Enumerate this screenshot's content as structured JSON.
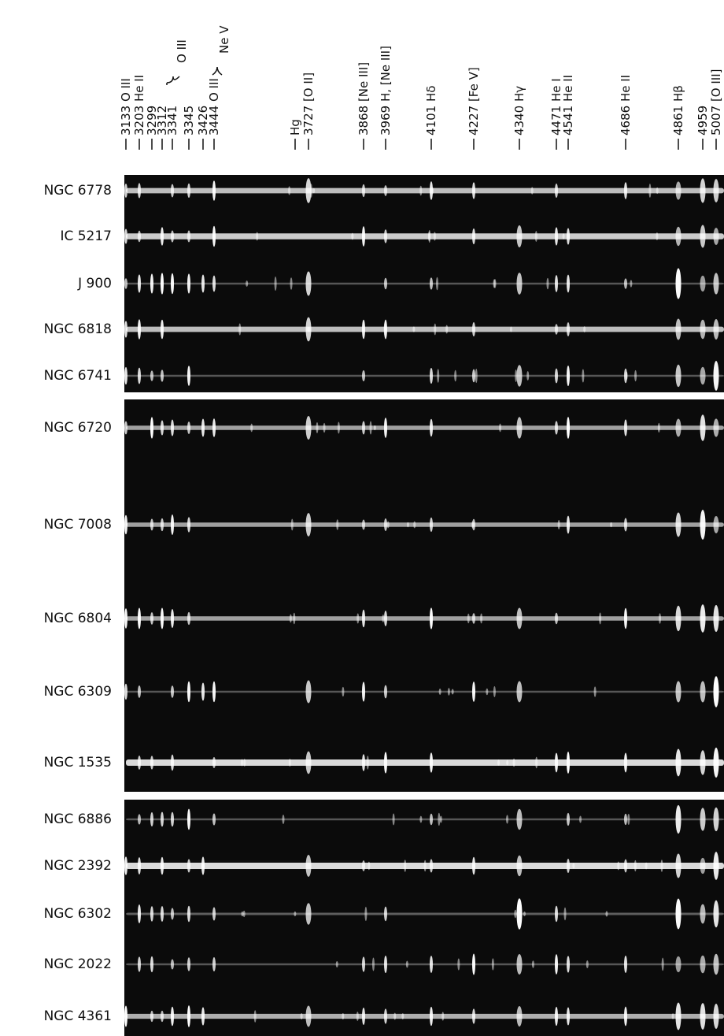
{
  "figure": {
    "line_labels": [
      "3133 O III",
      "3203 He II",
      "3299",
      "3312",
      "3341",
      "3345",
      "3426",
      "3444 O III",
      "Hg",
      "3727 [O II]",
      "3868 [Ne III]",
      "3969 H, [Ne III]",
      "4101 Hδ",
      "4227 [Fe V]",
      "4340 Hγ",
      "4471 He I",
      "4541 He II",
      "4686 He II",
      "4861 Hβ",
      "4959",
      "5007 [O III]"
    ],
    "bracket_labels": [
      "O III",
      "Ne V"
    ],
    "spectra": [
      "NGC 6778",
      "IC 5217",
      "J 900",
      "NGC 6818",
      "NGC 6741",
      "NGC 6720",
      "NGC 7008",
      "NGC 6804",
      "NGC 6309",
      "NGC 1535",
      "NGC 6886",
      "NGC 2392",
      "NGC 6302",
      "NGC 2022",
      "NGC 4361"
    ]
  }
}
